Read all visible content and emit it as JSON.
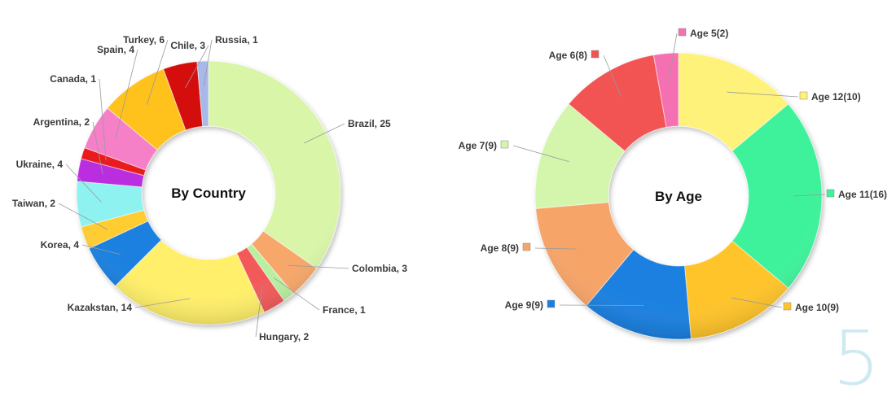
{
  "chart_data": [
    {
      "type": "pie",
      "title": "By Country",
      "donut": true,
      "start": "top",
      "direction": "clockwise",
      "slices": [
        {
          "label": "Brazil, 25",
          "value": 25,
          "color": "#d8f5a8"
        },
        {
          "label": "Colombia, 3",
          "value": 3,
          "color": "#f7a76a"
        },
        {
          "label": "France, 1",
          "value": 1,
          "color": "#b8f0a0"
        },
        {
          "label": "Hungary, 2",
          "value": 2,
          "color": "#f25a5a"
        },
        {
          "label": "Kazakstan, 14",
          "value": 14,
          "color": "#ffef6a"
        },
        {
          "label": "Korea, 4",
          "value": 4,
          "color": "#1a80e0"
        },
        {
          "label": "Taiwan, 2",
          "value": 2,
          "color": "#ffcc33"
        },
        {
          "label": "Ukraine, 4",
          "value": 4,
          "color": "#8ef2f0"
        },
        {
          "label": "Argentina, 2",
          "value": 2,
          "color": "#bb2ee0"
        },
        {
          "label": "Canada, 1",
          "value": 1,
          "color": "#e81a1a"
        },
        {
          "label": "Spain, 4",
          "value": 4,
          "color": "#f580c8"
        },
        {
          "label": "Turkey, 6",
          "value": 6,
          "color": "#ffc21a"
        },
        {
          "label": "Chile, 3",
          "value": 3,
          "color": "#d40f0f"
        },
        {
          "label": "Russia, 1",
          "value": 1,
          "color": "#a8b8e8"
        }
      ]
    },
    {
      "type": "pie",
      "title": "By Age",
      "donut": true,
      "start": "top",
      "direction": "clockwise",
      "slices": [
        {
          "label": "Age 12(10)",
          "value": 10,
          "color": "#fff27a"
        },
        {
          "label": "Age 11(16)",
          "value": 16,
          "color": "#3ef29a"
        },
        {
          "label": "Age 10(9)",
          "value": 9,
          "color": "#ffc42a"
        },
        {
          "label": "Age 9(9)",
          "value": 9,
          "color": "#1a80e0"
        },
        {
          "label": "Age 8(9)",
          "value": 9,
          "color": "#f7a468"
        },
        {
          "label": "Age 7(9)",
          "value": 9,
          "color": "#d4f5ac"
        },
        {
          "label": "Age 6(8)",
          "value": 8,
          "color": "#f25252"
        },
        {
          "label": "Age 5(2)",
          "value": 2,
          "color": "#f570b0"
        }
      ]
    }
  ],
  "page": {
    "number": "5"
  }
}
